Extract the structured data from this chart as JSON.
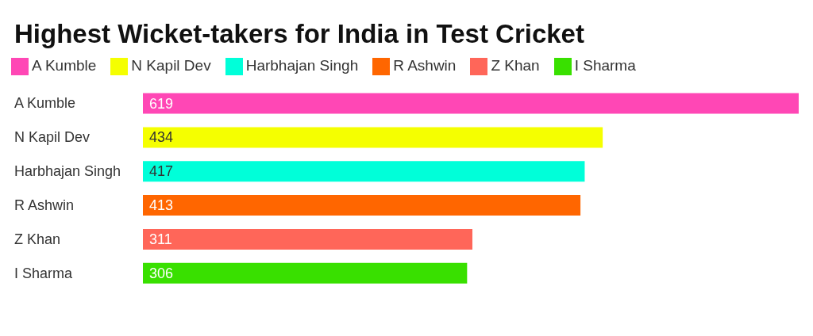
{
  "chart_data": {
    "type": "bar",
    "orientation": "horizontal",
    "stacked": true,
    "title": "Highest Wicket-takers for India in Test Cricket",
    "categories": [
      "A Kumble",
      "N Kapil Dev",
      "Harbhajan Singh",
      "R Ashwin",
      "Z Khan",
      "I Sharma"
    ],
    "series": [
      {
        "name": "A Kumble",
        "color": "#ff47b5",
        "values": [
          619,
          null,
          null,
          null,
          null,
          null
        ]
      },
      {
        "name": "N Kapil Dev",
        "color": "#f5ff00",
        "values": [
          null,
          434,
          null,
          null,
          null,
          null
        ]
      },
      {
        "name": "Harbhajan Singh",
        "color": "#00ffd9",
        "values": [
          null,
          null,
          417,
          null,
          null,
          null
        ]
      },
      {
        "name": "R Ashwin",
        "color": "#ff6600",
        "values": [
          null,
          null,
          null,
          413,
          null,
          null
        ]
      },
      {
        "name": "Z Khan",
        "color": "#ff6659",
        "values": [
          null,
          null,
          null,
          null,
          311,
          null
        ]
      },
      {
        "name": "I Sharma",
        "color": "#39e000",
        "values": [
          null,
          null,
          null,
          null,
          null,
          306
        ]
      }
    ],
    "data_labels": true,
    "legend": "top",
    "grid": false
  }
}
